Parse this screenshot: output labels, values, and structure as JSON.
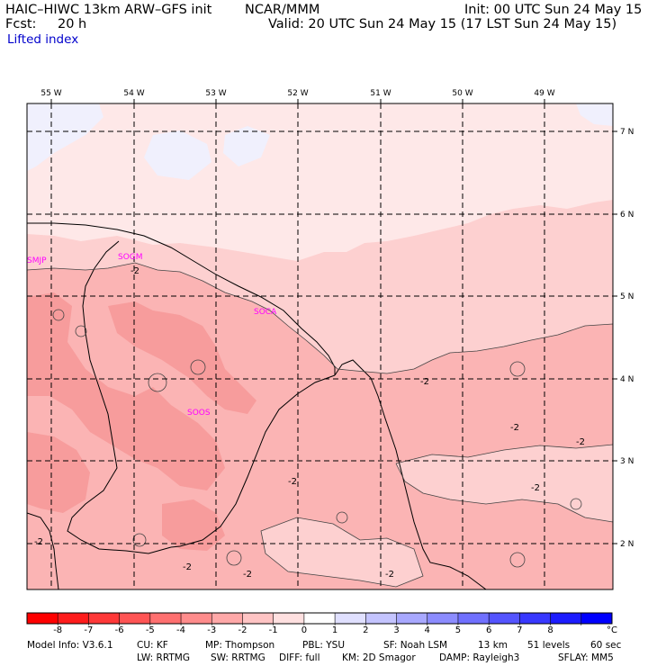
{
  "header": {
    "model_title": "HAIC–HIWC 13km ARW–GFS init",
    "org": "NCAR/MMM",
    "init": "Init: 00 UTC Sun 24 May 15",
    "fcst_label": "Fcst:",
    "fcst_value": "20 h",
    "valid": "Valid: 20 UTC Sun 24 May 15 (17 LST Sun 24 May 15)",
    "field": "Lifted index"
  },
  "map": {
    "lon_labels": [
      "55 W",
      "54 W",
      "53 W",
      "52 W",
      "51 W",
      "50 W",
      "49 W"
    ],
    "lat_labels": [
      "7 N",
      "6 N",
      "5 N",
      "4 N",
      "3 N",
      "2 N"
    ],
    "stations": [
      "SMJP",
      "SOGM",
      "SOCA",
      "SOOS"
    ],
    "contour_labels": [
      "-2",
      "-2",
      "-2",
      "-2",
      "-2",
      "-2",
      "-2",
      "-2",
      "-2",
      "-2"
    ],
    "colors": {
      "lt_minus3": "#f79c9c",
      "minus3_minus2": "#fbb4b4",
      "minus2_minus1": "#fdd0d0",
      "minus1_0": "#fee8e8",
      "0_1": "#f0f0fd",
      "ocean_far": "#fff0f0"
    }
  },
  "colorbar": {
    "levels": [
      "-8",
      "-7",
      "-6",
      "-5",
      "-4",
      "-3",
      "-2",
      "-1",
      "0",
      "1",
      "2",
      "3",
      "4",
      "5",
      "6",
      "7",
      "8"
    ],
    "unit": "°C",
    "colors": [
      "#ff0000",
      "#ff1c1c",
      "#ff3838",
      "#ff5454",
      "#ff7070",
      "#ff8c8c",
      "#ffa8a8",
      "#ffc4c4",
      "#ffe0e0",
      "#ffffff",
      "#e0e0ff",
      "#c4c4ff",
      "#a8a8ff",
      "#8c8cff",
      "#7070ff",
      "#5454ff",
      "#3838ff",
      "#1c1cff",
      "#0000ff"
    ]
  },
  "footer": {
    "line1": [
      "Model Info: V3.6.1",
      "CU: KF",
      "MP: Thompson",
      "PBL: YSU",
      "SF: Noah LSM",
      "13 km",
      "51 levels",
      "60 sec"
    ],
    "line2": [
      "LW: RRTMG",
      "SW: RRTMG",
      "DIFF: full",
      "KM: 2D Smagor",
      "DAMP: Rayleigh3",
      "SFLAY: MM5"
    ]
  }
}
